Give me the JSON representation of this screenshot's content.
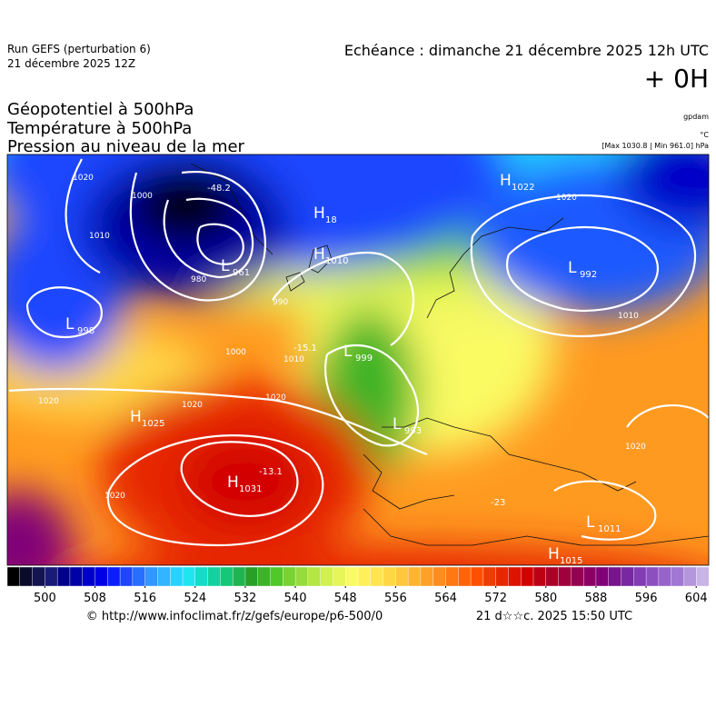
{
  "header": {
    "run": "Run GEFS (perturbation 6)",
    "run_date": "21 décembre 2025 12Z",
    "valid_time": "Echéance : dimanche 21 décembre 2025 12h UTC",
    "lead": "+ 0H"
  },
  "fields": [
    "Géopotentiel à 500hPa",
    "Température à 500hPa",
    "Pression au niveau de la mer"
  ],
  "units": {
    "geopotential": "gpdam",
    "temperature": "°C",
    "pressure": "[Max 1030.8 | Min 961.0] hPa"
  },
  "map": {
    "pressure_centers": [
      {
        "kind": "H",
        "value": 1022
      },
      {
        "kind": "H",
        "value": 18
      },
      {
        "kind": "L",
        "value": 961
      },
      {
        "kind": "H",
        "value": 1010
      },
      {
        "kind": "L",
        "value": 998
      },
      {
        "kind": "H",
        "value": 1025
      },
      {
        "kind": "H",
        "value": 1031
      },
      {
        "kind": "L",
        "value": 999
      },
      {
        "kind": "L",
        "value": 993
      },
      {
        "kind": "L",
        "value": 992
      },
      {
        "kind": "L",
        "value": 1011
      },
      {
        "kind": "H",
        "value": 1015
      }
    ],
    "temperature_labels": [
      -48.2,
      -15.1,
      -13.1,
      -23
    ],
    "isobar_labels": [
      1020,
      1000,
      1010,
      980,
      990,
      1000,
      1010,
      1020,
      1020,
      1020,
      1020,
      1010,
      1020,
      1020
    ]
  },
  "colorbar": {
    "range": [
      494,
      606
    ],
    "ticks": [
      500,
      508,
      516,
      524,
      532,
      540,
      548,
      556,
      564,
      572,
      580,
      588,
      596,
      604
    ],
    "colors": [
      "#000000",
      "#0a0a2a",
      "#141450",
      "#1a1a78",
      "#00008b",
      "#0000a8",
      "#0000c8",
      "#0000e6",
      "#0a1eff",
      "#1e46ff",
      "#286eff",
      "#3296ff",
      "#32b4ff",
      "#28d2ff",
      "#1ee6f0",
      "#14dcc8",
      "#14d2a0",
      "#14c878",
      "#1eb450",
      "#28a028",
      "#3cb428",
      "#50c828",
      "#78d232",
      "#96dc3c",
      "#b4e646",
      "#d2f050",
      "#e6f55a",
      "#fafa64",
      "#fff05a",
      "#ffe650",
      "#ffd746",
      "#ffc83c",
      "#ffb432",
      "#ffa028",
      "#ff8c1e",
      "#ff7814",
      "#ff640a",
      "#ff5000",
      "#f03c00",
      "#e62800",
      "#dc1400",
      "#d20000",
      "#be0014",
      "#aa0028",
      "#a0003c",
      "#960050",
      "#8c0064",
      "#800078",
      "#78148c",
      "#7828a0",
      "#823cb4",
      "#8c50be",
      "#9664c8",
      "#a078d2",
      "#b496dc",
      "#c8b4e6"
    ]
  },
  "footer": {
    "source": "© http://www.infoclimat.fr/z/gefs/europe/p6-500/0",
    "generated": "21 d☆☆c. 2025 15:50 UTC"
  }
}
